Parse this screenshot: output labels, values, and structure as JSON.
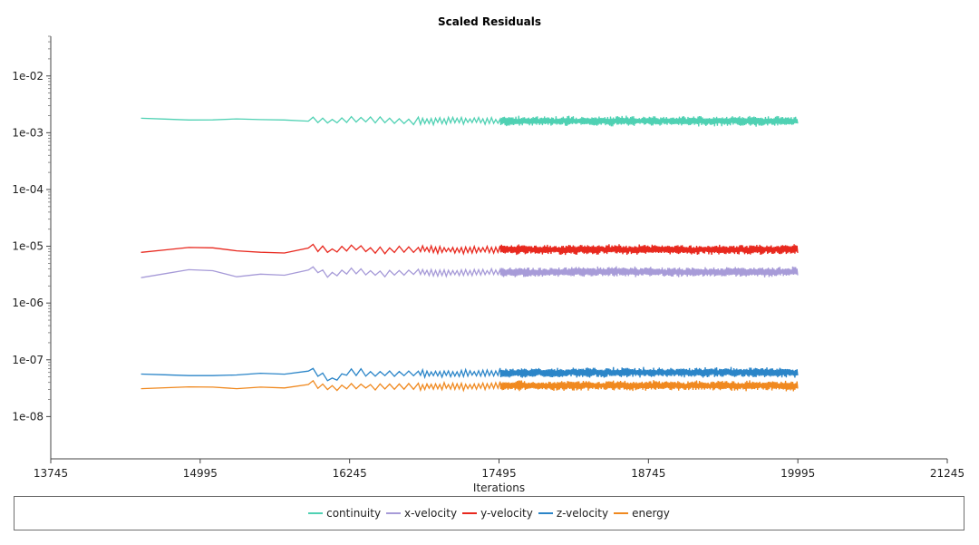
{
  "chart_data": {
    "type": "line",
    "title": "Scaled Residuals",
    "xlabel": "Iterations",
    "ylabel": "",
    "y_scale": "log",
    "xlim": [
      13745,
      21245
    ],
    "ylim": [
      1.8e-09,
      0.05
    ],
    "x_ticks": [
      "13745",
      "14995",
      "16245",
      "17495",
      "18745",
      "19995",
      "21245"
    ],
    "y_ticks": [
      "1e-02",
      "1e-03",
      "1e-04",
      "1e-05",
      "1e-06",
      "1e-07",
      "1e-08"
    ],
    "grid": false,
    "legend_position": "bottom",
    "series": [
      {
        "name": "continuity",
        "color": "#4fd1b3",
        "x": [
          14500,
          15000,
          15300,
          15500,
          15700,
          15900,
          16100,
          16250,
          16500,
          16800,
          17100,
          17495,
          18000,
          18500,
          19000,
          19500,
          19995
        ],
        "values": [
          0.0018,
          0.00165,
          0.00175,
          0.0017,
          0.00168,
          0.0018,
          0.00155,
          0.00175,
          0.00165,
          0.0016,
          0.00165,
          0.0016,
          0.0016,
          0.00162,
          0.0016,
          0.0016,
          0.0016
        ]
      },
      {
        "name": "x-velocity",
        "color": "#a79bd8",
        "x": [
          14500,
          15000,
          15300,
          15600,
          15800,
          15900,
          16100,
          16250,
          16500,
          16800,
          17100,
          17495,
          18000,
          18500,
          19000,
          19500,
          19995
        ],
        "values": [
          2.8e-06,
          4.2e-06,
          2.9e-06,
          3.4e-06,
          2.8e-06,
          4.2e-06,
          3.1e-06,
          3.7e-06,
          3.3e-06,
          3.5e-06,
          3.4e-06,
          3.5e-06,
          3.5e-06,
          3.6e-06,
          3.5e-06,
          3.5e-06,
          3.6e-06
        ]
      },
      {
        "name": "y-velocity",
        "color": "#e8281e",
        "x": [
          14500,
          15000,
          15300,
          15600,
          15800,
          15900,
          16100,
          16250,
          16500,
          16800,
          17100,
          17495,
          18000,
          18500,
          19000,
          19500,
          19995
        ],
        "values": [
          7.8e-06,
          1e-05,
          8.3e-06,
          7.6e-06,
          7.6e-06,
          1.05e-05,
          8.2e-06,
          9.6e-06,
          8.4e-06,
          8.8e-06,
          8.6e-06,
          8.7e-06,
          8.7e-06,
          8.8e-06,
          8.7e-06,
          8.7e-06,
          8.8e-06
        ]
      },
      {
        "name": "z-velocity",
        "color": "#2b85c8",
        "x": [
          14500,
          15000,
          15300,
          15600,
          15800,
          15900,
          16100,
          16250,
          16500,
          16800,
          17100,
          17495,
          18000,
          18500,
          19000,
          19500,
          19995
        ],
        "values": [
          5.6e-08,
          5.2e-08,
          5.4e-08,
          6e-08,
          5.2e-08,
          7e-08,
          4.3e-08,
          6.2e-08,
          5.6e-08,
          5.8e-08,
          5.7e-08,
          5.8e-08,
          5.9e-08,
          6e-08,
          6e-08,
          6e-08,
          6e-08
        ]
      },
      {
        "name": "energy",
        "color": "#f0891f",
        "x": [
          14500,
          15000,
          15300,
          15600,
          15800,
          15900,
          16100,
          16250,
          16500,
          16800,
          17100,
          17495,
          18000,
          18500,
          19000,
          19500,
          19995
        ],
        "values": [
          3.1e-08,
          3.4e-08,
          3.1e-08,
          3.4e-08,
          3e-08,
          4e-08,
          3e-08,
          3.5e-08,
          3.4e-08,
          3.4e-08,
          3.4e-08,
          3.5e-08,
          3.5e-08,
          3.5e-08,
          3.5e-08,
          3.5e-08,
          3.5e-08
        ]
      }
    ]
  }
}
